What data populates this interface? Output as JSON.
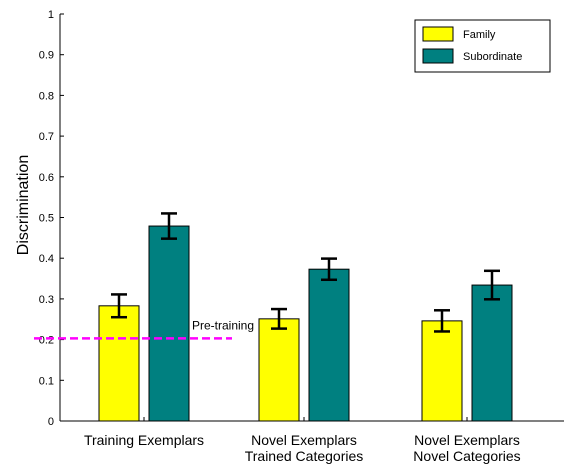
{
  "chart_data": {
    "type": "bar",
    "ylabel": "Discrimination",
    "ylim": [
      0,
      1
    ],
    "yticks": [
      "0",
      "0.1",
      "0.2",
      "0.3",
      "0.4",
      "0.5",
      "0.6",
      "0.7",
      "0.8",
      "0.9",
      "1"
    ],
    "categories": [
      [
        "Training Exemplars"
      ],
      [
        "Novel Exemplars",
        "Trained Categories"
      ],
      [
        "Novel Exemplars",
        "Novel Categories"
      ]
    ],
    "series": [
      {
        "name": "Family",
        "color": "#ffff00",
        "values": [
          0.283,
          0.251,
          0.246
        ],
        "errors": [
          0.028,
          0.024,
          0.026
        ]
      },
      {
        "name": "Subordinate",
        "color": "#008080",
        "values": [
          0.479,
          0.373,
          0.334
        ],
        "errors": [
          0.031,
          0.026,
          0.035
        ]
      }
    ],
    "legend_position": "top-right",
    "reference_line": {
      "label": "Pre-training",
      "value": 0.203,
      "color": "#ff00ff",
      "style": "dashed",
      "spans_category": 0
    },
    "grid": false
  }
}
